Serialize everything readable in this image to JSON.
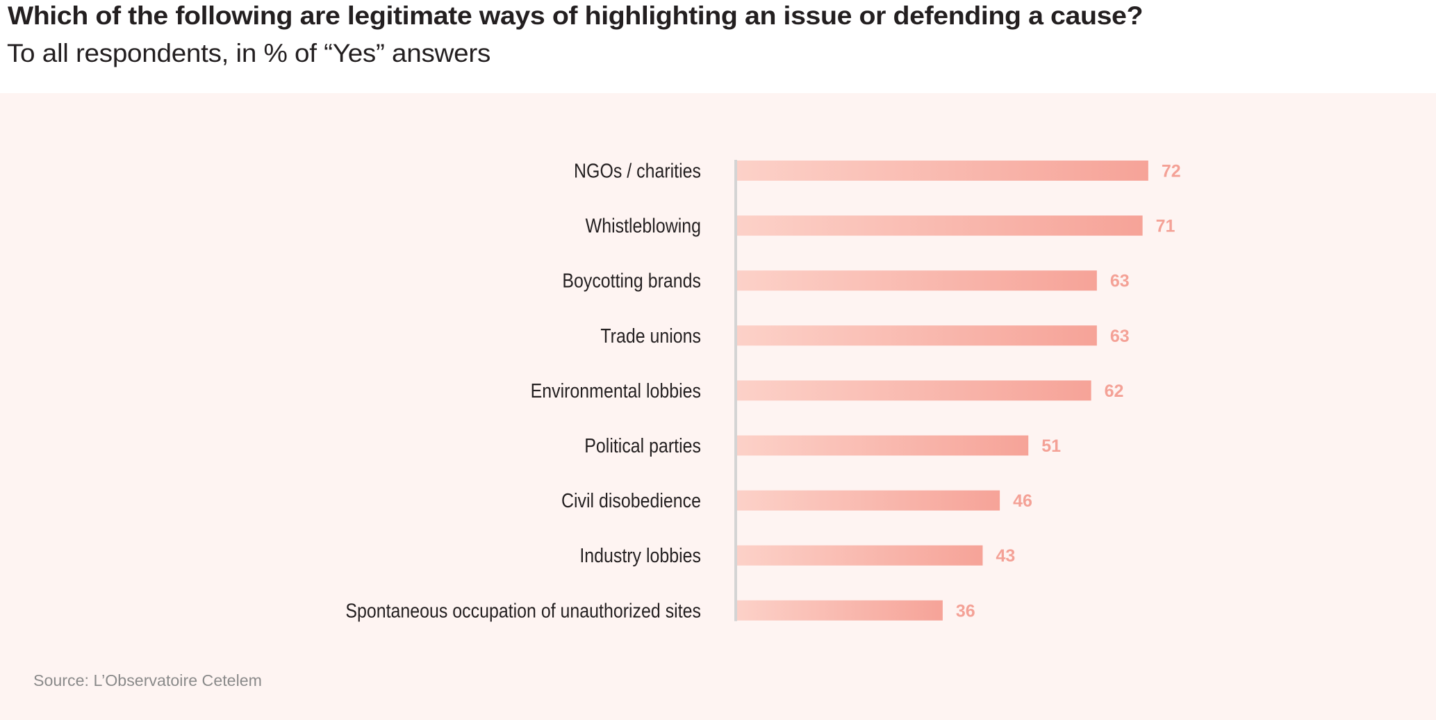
{
  "header": {
    "title": "Which of the following are legitimate ways of highlighting an issue or defending a cause?",
    "subtitle": "To all respondents, in % of “Yes” answers"
  },
  "footer": {
    "source": "Source: L’Observatoire Cetelem"
  },
  "colors": {
    "bar_gradient_start": "#fcd1c8",
    "bar_gradient_end": "#f6a398",
    "value_label": "#f4a196",
    "axis": "#d4d4d4",
    "panel_background": "#fef4f2",
    "text": "#231f20",
    "source_text": "#8a8a8a"
  },
  "chart_data": {
    "type": "bar",
    "orientation": "horizontal",
    "title": "Which of the following are legitimate ways of highlighting an issue or defending a cause?",
    "subtitle": "To all respondents, in % of “Yes” answers",
    "xlabel": "",
    "ylabel": "",
    "unit": "%",
    "grid": false,
    "legend": "none",
    "xlim": [
      0,
      100
    ],
    "categories": [
      "NGOs / charities",
      "Whistleblowing",
      "Boycotting brands",
      "Trade unions",
      "Environmental lobbies",
      "Political parties",
      "Civil disobedience",
      "Industry lobbies",
      "Spontaneous occupation of unauthorized sites"
    ],
    "values": [
      72,
      71,
      63,
      63,
      62,
      51,
      46,
      43,
      36
    ],
    "source": "Source: L’Observatoire Cetelem"
  }
}
